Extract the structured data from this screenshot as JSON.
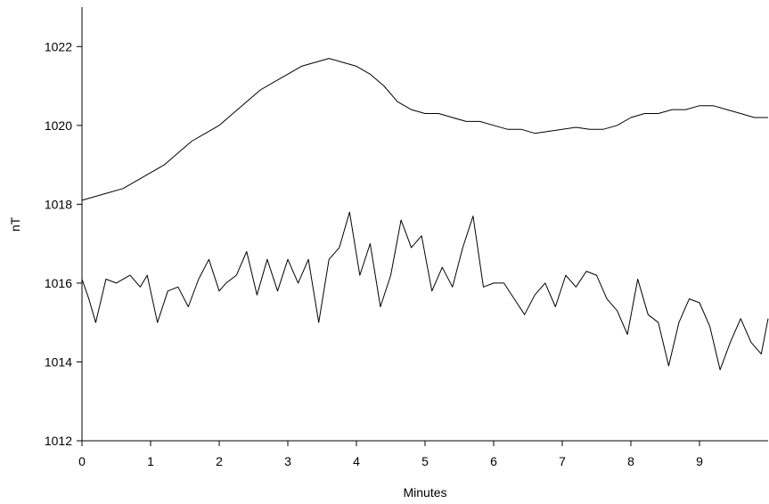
{
  "chart_data": {
    "type": "line",
    "title": "",
    "xlabel": "Minutes",
    "ylabel": "nT",
    "xlim": [
      0,
      10
    ],
    "ylim": [
      1012,
      1023
    ],
    "x_ticks": [
      0,
      1,
      2,
      3,
      4,
      5,
      6,
      7,
      8,
      9
    ],
    "y_ticks": [
      1012,
      1014,
      1016,
      1018,
      1020,
      1022
    ],
    "grid": false,
    "legend": "none",
    "line_color": "#000000",
    "series": [
      {
        "x": [
          0.0,
          0.2,
          0.4,
          0.6,
          0.8,
          1.0,
          1.2,
          1.4,
          1.6,
          1.8,
          2.0,
          2.2,
          2.4,
          2.6,
          2.8,
          3.0,
          3.2,
          3.4,
          3.6,
          3.8,
          4.0,
          4.2,
          4.4,
          4.6,
          4.8,
          5.0,
          5.2,
          5.4,
          5.6,
          5.8,
          6.0,
          6.2,
          6.4,
          6.6,
          6.8,
          7.0,
          7.2,
          7.4,
          7.6,
          7.8,
          8.0,
          8.2,
          8.4,
          8.6,
          8.8,
          9.0,
          9.2,
          9.4,
          9.6,
          9.8,
          10.0
        ],
        "values": [
          1018.1,
          1018.2,
          1018.3,
          1018.4,
          1018.6,
          1018.8,
          1019.0,
          1019.3,
          1019.6,
          1019.8,
          1020.0,
          1020.3,
          1020.6,
          1020.9,
          1021.1,
          1021.3,
          1021.5,
          1021.6,
          1021.7,
          1021.6,
          1021.5,
          1021.3,
          1021.0,
          1020.6,
          1020.4,
          1020.3,
          1020.3,
          1020.2,
          1020.1,
          1020.1,
          1020.0,
          1019.9,
          1019.9,
          1019.8,
          1019.85,
          1019.9,
          1019.95,
          1019.9,
          1019.9,
          1020.0,
          1020.2,
          1020.3,
          1020.3,
          1020.4,
          1020.4,
          1020.5,
          1020.5,
          1020.4,
          1020.3,
          1020.2,
          1020.2
        ]
      },
      {
        "x": [
          0.0,
          0.1,
          0.2,
          0.35,
          0.5,
          0.7,
          0.85,
          0.95,
          1.1,
          1.25,
          1.4,
          1.55,
          1.7,
          1.85,
          2.0,
          2.1,
          2.25,
          2.4,
          2.55,
          2.7,
          2.85,
          3.0,
          3.15,
          3.3,
          3.45,
          3.6,
          3.75,
          3.9,
          4.05,
          4.2,
          4.35,
          4.5,
          4.65,
          4.8,
          4.95,
          5.1,
          5.25,
          5.4,
          5.55,
          5.7,
          5.85,
          6.0,
          6.15,
          6.3,
          6.45,
          6.6,
          6.75,
          6.9,
          7.05,
          7.2,
          7.35,
          7.5,
          7.65,
          7.8,
          7.95,
          8.1,
          8.25,
          8.4,
          8.55,
          8.7,
          8.85,
          9.0,
          9.15,
          9.3,
          9.45,
          9.6,
          9.75,
          9.9,
          10.0
        ],
        "values": [
          1016.1,
          1015.6,
          1015.0,
          1016.1,
          1016.0,
          1016.2,
          1015.9,
          1016.2,
          1015.0,
          1015.8,
          1015.9,
          1015.4,
          1016.1,
          1016.6,
          1015.8,
          1016.0,
          1016.2,
          1016.8,
          1015.7,
          1016.6,
          1015.8,
          1016.6,
          1016.0,
          1016.6,
          1015.0,
          1016.6,
          1016.9,
          1017.8,
          1016.2,
          1017.0,
          1015.4,
          1016.2,
          1017.6,
          1016.9,
          1017.2,
          1015.8,
          1016.4,
          1015.9,
          1016.9,
          1017.7,
          1015.9,
          1016.0,
          1016.0,
          1015.6,
          1015.2,
          1015.7,
          1016.0,
          1015.4,
          1016.2,
          1015.9,
          1016.3,
          1016.2,
          1015.6,
          1015.3,
          1014.7,
          1016.1,
          1015.2,
          1015.0,
          1013.9,
          1015.0,
          1015.6,
          1015.5,
          1014.9,
          1013.8,
          1014.5,
          1015.1,
          1014.5,
          1014.2,
          1015.1
        ]
      }
    ]
  }
}
